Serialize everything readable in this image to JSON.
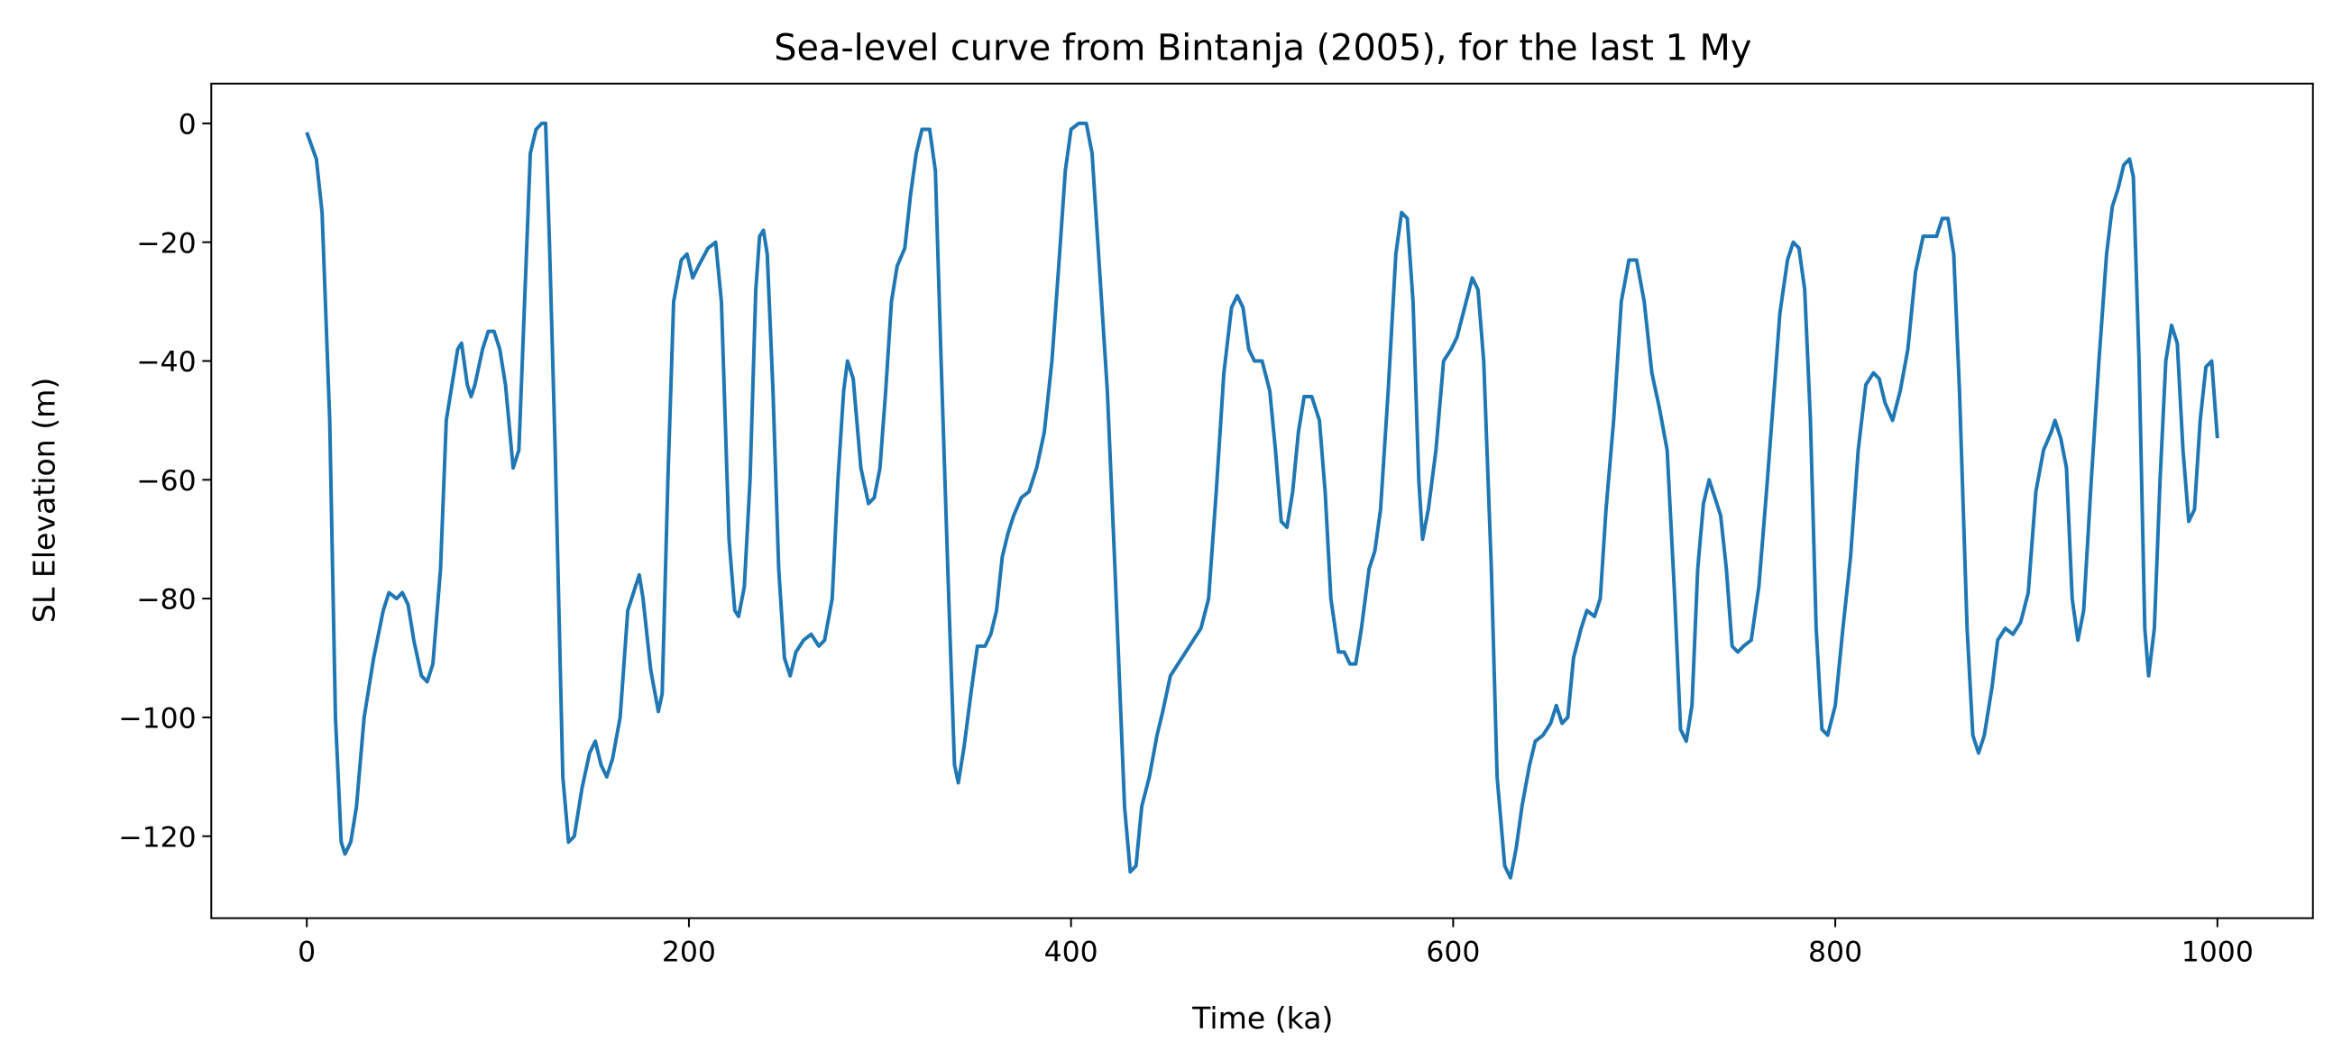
{
  "chart_data": {
    "type": "line",
    "title": "Sea-level curve from Bintanja (2005), for the last 1 My",
    "xlabel": "Time (ka)",
    "ylabel": "SL Elevation (m)",
    "xlim": [
      -50,
      1050
    ],
    "ylim": [
      -133.8,
      6.7
    ],
    "xticks": [
      0,
      200,
      400,
      600,
      800,
      1000
    ],
    "yticks": [
      {
        "value": -120,
        "label": "−120"
      },
      {
        "value": -100,
        "label": "−100"
      },
      {
        "value": -80,
        "label": "−80"
      },
      {
        "value": -60,
        "label": "−60"
      },
      {
        "value": -40,
        "label": "−40"
      },
      {
        "value": -20,
        "label": "−20"
      },
      0
    ],
    "series": [
      {
        "color": "#1f77b4",
        "x": [
          0,
          5,
          8,
          12,
          15,
          18,
          20,
          23,
          26,
          30,
          35,
          40,
          43,
          47,
          50,
          53,
          56,
          60,
          63,
          66,
          70,
          73,
          76,
          79,
          81,
          84,
          86,
          88,
          92,
          95,
          98,
          101,
          104,
          108,
          111,
          114,
          117,
          120,
          123,
          125,
          127,
          130,
          134,
          137,
          140,
          144,
          148,
          151,
          154,
          157,
          160,
          164,
          168,
          171,
          174,
          176,
          180,
          184,
          186,
          189,
          192,
          196,
          199,
          202,
          205,
          210,
          214,
          217,
          221,
          224,
          226,
          229,
          232,
          235,
          237,
          239,
          241,
          244,
          247,
          250,
          253,
          256,
          260,
          264,
          268,
          271,
          275,
          278,
          281,
          283,
          286,
          290,
          294,
          297,
          300,
          303,
          306,
          309,
          313,
          316,
          319,
          322,
          326,
          329,
          332,
          336,
          339,
          341,
          344,
          348,
          351,
          355,
          358,
          361,
          364,
          367,
          370,
          374,
          378,
          382,
          386,
          390,
          394,
          397,
          400,
          404,
          408,
          411,
          415,
          419,
          423,
          428,
          431,
          434,
          437,
          441,
          445,
          448,
          452,
          456,
          460,
          464,
          468,
          472,
          476,
          480,
          484,
          487,
          490,
          493,
          496,
          500,
          504,
          507,
          510,
          513,
          516,
          519,
          522,
          526,
          530,
          533,
          536,
          540,
          543,
          546,
          549,
          552,
          556,
          559,
          562,
          566,
          570,
          573,
          576,
          579,
          582,
          584,
          587,
          591,
          595,
          599,
          602,
          606,
          610,
          613,
          616,
          620,
          623,
          627,
          630,
          633,
          636,
          640,
          643,
          647,
          651,
          654,
          657,
          660,
          663,
          667,
          670,
          674,
          677,
          680,
          684,
          688,
          692,
          696,
          700,
          704,
          708,
          712,
          716,
          719,
          722,
          725,
          728,
          731,
          734,
          737,
          740,
          743,
          746,
          749,
          752,
          756,
          760,
          764,
          768,
          771,
          775,
          778,
          781,
          784,
          787,
          790,
          793,
          796,
          800,
          804,
          808,
          812,
          816,
          820,
          823,
          826,
          830,
          834,
          838,
          842,
          846,
          850,
          853,
          856,
          859,
          862,
          865,
          869,
          872,
          875,
          878,
          882,
          885,
          889,
          893,
          897,
          901,
          905,
          909,
          913,
          915,
          918,
          921,
          924,
          927,
          930,
          934,
          938,
          942,
          945,
          948,
          951,
          954,
          956,
          959,
          962,
          964,
          967,
          970,
          973,
          976,
          979,
          982,
          985,
          988,
          991,
          994,
          997,
          1000
        ],
        "values": [
          -1.5,
          -6,
          -15,
          -50,
          -100,
          -121,
          -123,
          -121,
          -115,
          -100,
          -90,
          -82,
          -79,
          -80,
          -79,
          -81,
          -87,
          -93,
          -94,
          -91,
          -75,
          -50,
          -44,
          -38,
          -37,
          -44,
          -46,
          -44,
          -38,
          -35,
          -35,
          -38,
          -44,
          -58,
          -55,
          -30,
          -5,
          -1,
          0,
          0,
          -20,
          -55,
          -110,
          -121,
          -120,
          -112,
          -106,
          -104,
          -108,
          -110,
          -107,
          -100,
          -82,
          -79,
          -76,
          -80,
          -92,
          -99,
          -96,
          -60,
          -30,
          -23,
          -22,
          -26,
          -24,
          -21,
          -20,
          -30,
          -70,
          -82,
          -83,
          -78,
          -60,
          -28,
          -19,
          -18,
          -22,
          -45,
          -75,
          -90,
          -93,
          -89,
          -87,
          -86,
          -88,
          -87,
          -80,
          -60,
          -45,
          -40,
          -43,
          -58,
          -64,
          -63,
          -58,
          -45,
          -30,
          -24,
          -21,
          -12,
          -5,
          -1,
          -1,
          -8,
          -40,
          -80,
          -108,
          -111,
          -105,
          -95,
          -88,
          -88,
          -86,
          -82,
          -73,
          -69,
          -66,
          -63,
          -62,
          -58,
          -52,
          -40,
          -22,
          -8,
          -1,
          0,
          0,
          -5,
          -25,
          -45,
          -75,
          -115,
          -126,
          -125,
          -115,
          -110,
          -103,
          -99,
          -93,
          -91,
          -89,
          -87,
          -85,
          -80,
          -62,
          -42,
          -31,
          -29,
          -31,
          -38,
          -40,
          -40,
          -45,
          -55,
          -67,
          -68,
          -62,
          -52,
          -46,
          -46,
          -50,
          -62,
          -80,
          -89,
          -89,
          -91,
          -91,
          -85,
          -75,
          -72,
          -65,
          -45,
          -22,
          -15,
          -16,
          -30,
          -60,
          -70,
          -65,
          -55,
          -40,
          -38,
          -36,
          -31,
          -26,
          -28,
          -40,
          -75,
          -110,
          -125,
          -127,
          -122,
          -115,
          -108,
          -104,
          -103,
          -101,
          -98,
          -101,
          -100,
          -90,
          -85,
          -82,
          -83,
          -80,
          -65,
          -50,
          -30,
          -23,
          -23,
          -30,
          -42,
          -48,
          -55,
          -80,
          -102,
          -104,
          -98,
          -75,
          -64,
          -60,
          -63,
          -66,
          -75,
          -88,
          -89,
          -88,
          -87,
          -78,
          -62,
          -45,
          -32,
          -23,
          -20,
          -21,
          -28,
          -50,
          -85,
          -102,
          -103,
          -98,
          -85,
          -73,
          -55,
          -44,
          -42,
          -43,
          -47,
          -50,
          -45,
          -38,
          -25,
          -19,
          -19,
          -19,
          -16,
          -16,
          -22,
          -45,
          -85,
          -103,
          -106,
          -103,
          -95,
          -87,
          -85,
          -86,
          -84,
          -79,
          -62,
          -55,
          -52,
          -50,
          -53,
          -58,
          -80,
          -87,
          -82,
          -60,
          -40,
          -22,
          -14,
          -11,
          -7,
          -6,
          -9,
          -40,
          -85,
          -93,
          -85,
          -60,
          -40,
          -34,
          -37,
          -55,
          -67,
          -65,
          -50,
          -41,
          -40,
          -53
        ]
      }
    ]
  }
}
